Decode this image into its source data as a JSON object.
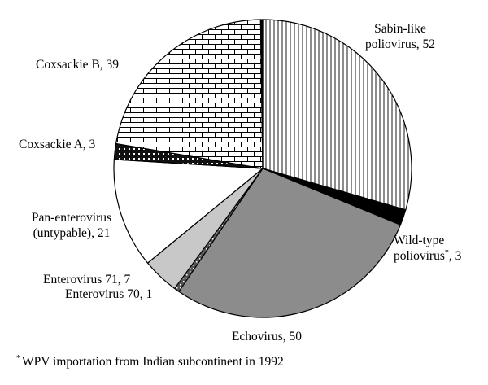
{
  "chart_data": {
    "type": "pie",
    "title": "",
    "slices": [
      {
        "label_lines": [
          "Sabin-like",
          "poliovirus, 52"
        ],
        "value": 52,
        "pattern": "vertical-lines"
      },
      {
        "label_lines": [
          "Wild-type",
          "poliovirus",
          "3"
        ],
        "value": 3,
        "pattern": "solid-black",
        "footnote_mark": "*"
      },
      {
        "label_lines": [
          "Echovirus, 50"
        ],
        "value": 50,
        "pattern": "solid-gray"
      },
      {
        "label_lines": [
          "Enterovirus 70, 1"
        ],
        "value": 1,
        "pattern": "dots-on-dark"
      },
      {
        "label_lines": [
          "Enterovirus 71, 7"
        ],
        "value": 7,
        "pattern": "solid-light-gray"
      },
      {
        "label_lines": [
          "Pan-enterovirus",
          "(untypable), 21"
        ],
        "value": 21,
        "pattern": "white"
      },
      {
        "label_lines": [
          "Coxsackie A, 3"
        ],
        "value": 3,
        "pattern": "dots-on-black"
      },
      {
        "label_lines": [
          "Coxsackie B, 39"
        ],
        "value": 39,
        "pattern": "bricks"
      },
      {
        "label_lines": [
          ""
        ],
        "value": 0.4,
        "pattern": "solid-black"
      }
    ],
    "footnote": {
      "mark": "*",
      "text": "WPV importation from Indian subcontinent in 1992"
    },
    "colors": {
      "edge": "#000000",
      "echovirus": "#8c8c8c",
      "enterovirus71": "#c8c8c8",
      "background": "#ffffff"
    }
  }
}
